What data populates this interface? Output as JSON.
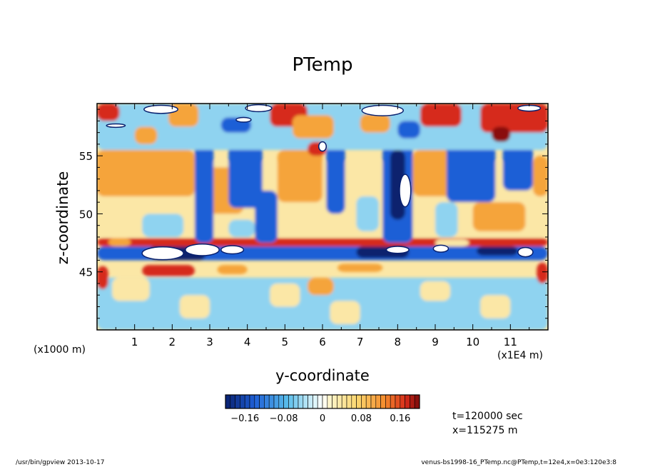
{
  "chart_data": {
    "type": "heatmap",
    "title": "PTemp",
    "xlabel": "y-coordinate",
    "ylabel": "z-coordinate",
    "x_unit_label": "(x1E4 m)",
    "y_unit_label": "(x1000 m)",
    "xlim": [
      0,
      12
    ],
    "ylim": [
      40,
      59.5
    ],
    "x_ticks": [
      "1",
      "2",
      "3",
      "4",
      "5",
      "6",
      "7",
      "8",
      "9",
      "10",
      "11"
    ],
    "y_ticks": [
      "45",
      "50",
      "55"
    ],
    "colorbar": {
      "range": [
        -0.2,
        0.2
      ],
      "tick_labels": [
        "-0.16",
        "-0.08",
        "0",
        "0.08",
        "0.16"
      ],
      "tick_values": [
        -0.16,
        -0.08,
        0,
        0.08,
        0.16
      ]
    },
    "info": [
      "t=120000 sec",
      "x=115275 m"
    ],
    "colors": {
      "dark_blue": "#08206e",
      "blue": "#1f5fd6",
      "light_blue": "#8fd3f0",
      "white": "#ffffff",
      "yellow": "#fbe7a6",
      "orange": "#f5a43a",
      "red": "#d62a1a",
      "dark_red": "#8a0c0c"
    }
  },
  "footer": {
    "left": "/usr/bin/gpview  2013-10-17",
    "right": "venus-bs1998-16_PTemp.nc@PTemp,t=12e4,x=0e3:120e3:8"
  }
}
